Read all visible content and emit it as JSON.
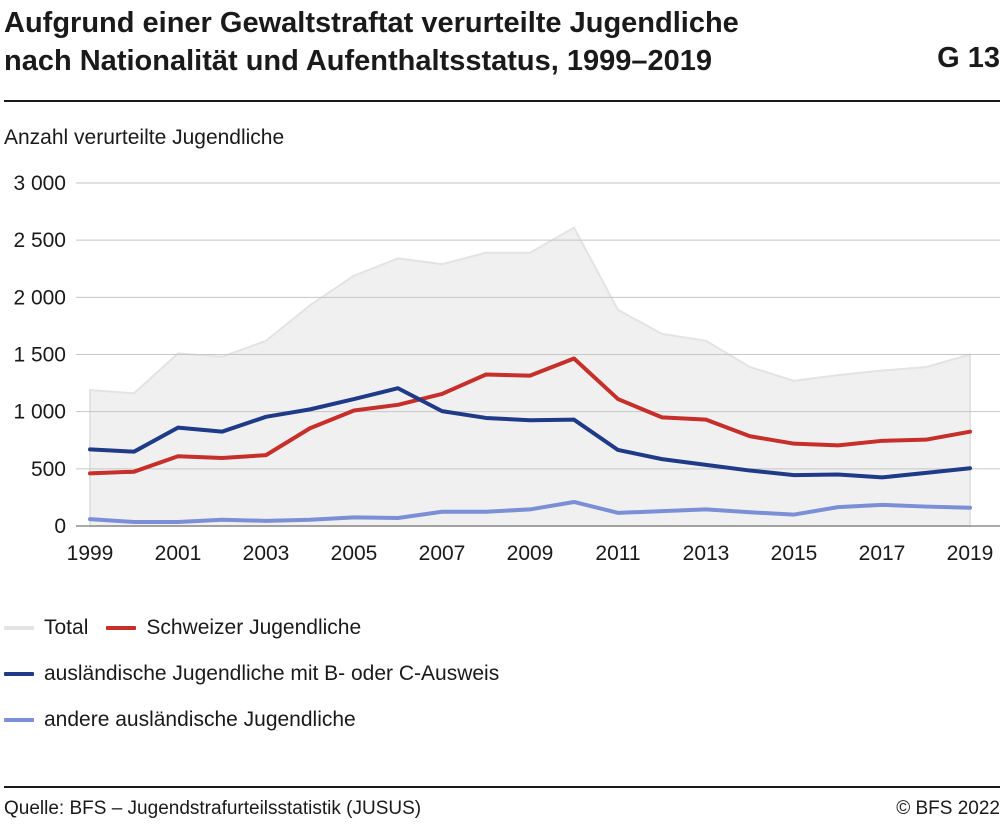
{
  "title_line1": "Aufgrund einer Gewaltstraftat verurteilte Jugendliche",
  "title_line2": "nach Nationalität und Aufenthaltsstatus, 1999–2019",
  "figure_code": "G 13",
  "source": "Quelle: BFS – Jugendstrafurteilsstatistik (JUSUS)",
  "copyright": "© BFS 2022",
  "chart_data": {
    "type": "line",
    "ylabel": "Anzahl verurteilte Jugendliche",
    "xlabel": "",
    "ylim": [
      0,
      3000
    ],
    "yticks": [
      0,
      500,
      1000,
      1500,
      2000,
      2500,
      3000
    ],
    "ytick_labels": [
      "0",
      "500",
      "1 000",
      "1 500",
      "2 000",
      "2 500",
      "3 000"
    ],
    "x": [
      1999,
      2000,
      2001,
      2002,
      2003,
      2004,
      2005,
      2006,
      2007,
      2008,
      2009,
      2010,
      2011,
      2012,
      2013,
      2014,
      2015,
      2016,
      2017,
      2018,
      2019
    ],
    "xtick_labels": [
      "1999",
      "2001",
      "2003",
      "2005",
      "2007",
      "2009",
      "2011",
      "2013",
      "2015",
      "2017",
      "2019"
    ],
    "grid": true,
    "legend_position": "bottom",
    "series": [
      {
        "name": "Total",
        "style": "area",
        "color": "#e3e3e3",
        "values": [
          1190,
          1160,
          1510,
          1480,
          1620,
          1930,
          2190,
          2340,
          2290,
          2390,
          2390,
          2610,
          1890,
          1680,
          1620,
          1390,
          1270,
          1320,
          1360,
          1390,
          1500
        ]
      },
      {
        "name": "Schweizer Jugendliche",
        "style": "line",
        "color": "#c62f2a",
        "values": [
          460,
          475,
          610,
          595,
          620,
          855,
          1010,
          1060,
          1155,
          1325,
          1315,
          1465,
          1110,
          950,
          930,
          785,
          720,
          705,
          745,
          755,
          825
        ]
      },
      {
        "name": "ausländische Jugendliche mit B- oder C-Ausweis",
        "style": "line",
        "color": "#1f3a87",
        "values": [
          670,
          650,
          860,
          825,
          955,
          1020,
          1110,
          1205,
          1005,
          945,
          925,
          930,
          665,
          585,
          535,
          485,
          445,
          450,
          425,
          465,
          505
        ]
      },
      {
        "name": "andere ausländische Jugendliche",
        "style": "line",
        "color": "#7b8fd6",
        "values": [
          60,
          35,
          35,
          55,
          45,
          55,
          75,
          70,
          125,
          125,
          145,
          210,
          115,
          130,
          145,
          120,
          100,
          165,
          185,
          170,
          160
        ]
      }
    ]
  }
}
